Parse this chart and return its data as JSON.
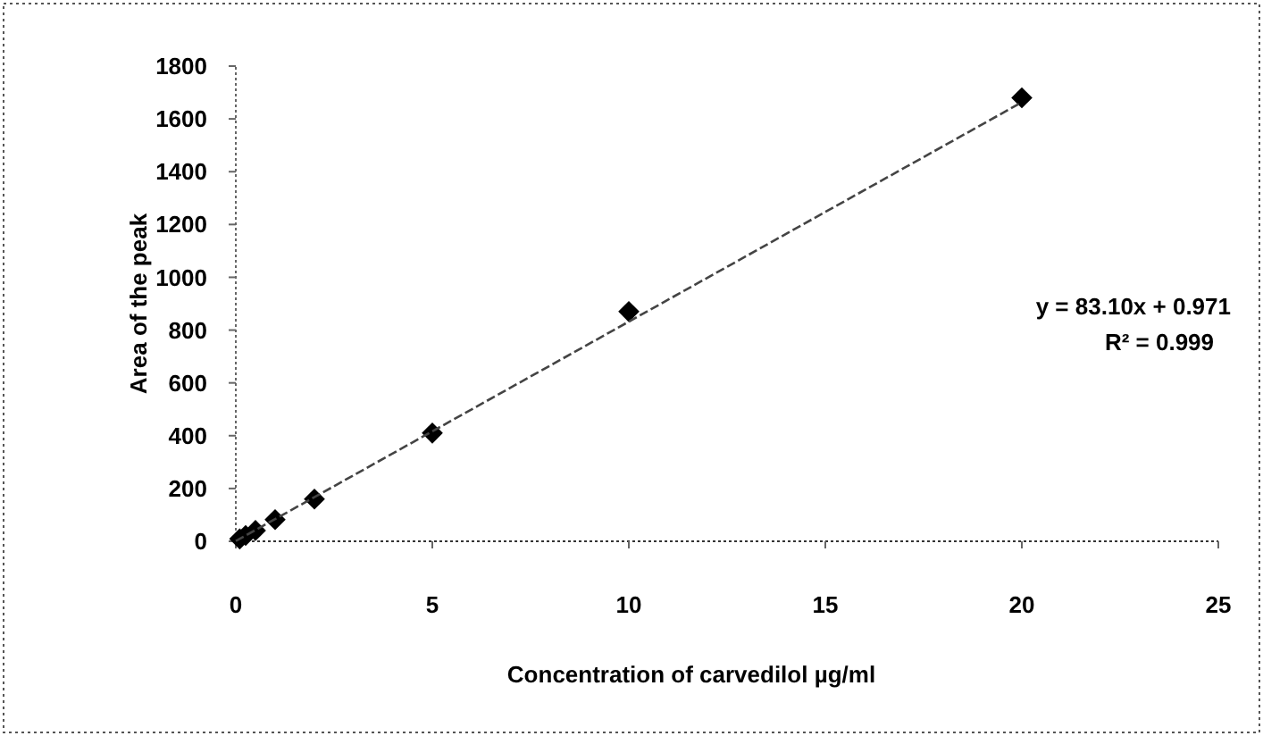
{
  "chart_data": {
    "type": "scatter",
    "xlabel": "Concentration of carvedilol µg/ml",
    "ylabel": "Area of the peak",
    "series": [
      {
        "color": "#000000",
        "marker": "diamond",
        "x": [
          0.1,
          0.25,
          0.5,
          1,
          2,
          5,
          10,
          20
        ],
        "values": [
          9,
          22,
          41,
          82,
          160,
          410,
          870,
          1680
        ]
      },
      {
        "type": "line",
        "color": "#444444",
        "marker": "none",
        "line_style": "dashed",
        "x": [
          0,
          20
        ],
        "values": [
          1,
          1663
        ]
      }
    ],
    "annotations": [
      "y = 83.10x + 0.971",
      "R² = 0.999"
    ],
    "xlim": [
      0,
      25
    ],
    "xticks": [
      0,
      5,
      10,
      15,
      20,
      25
    ],
    "ylim": [
      0,
      1800
    ],
    "yticks": [
      0,
      200,
      400,
      600,
      800,
      1000,
      1200,
      1400,
      1600,
      1800
    ],
    "grid": false
  }
}
